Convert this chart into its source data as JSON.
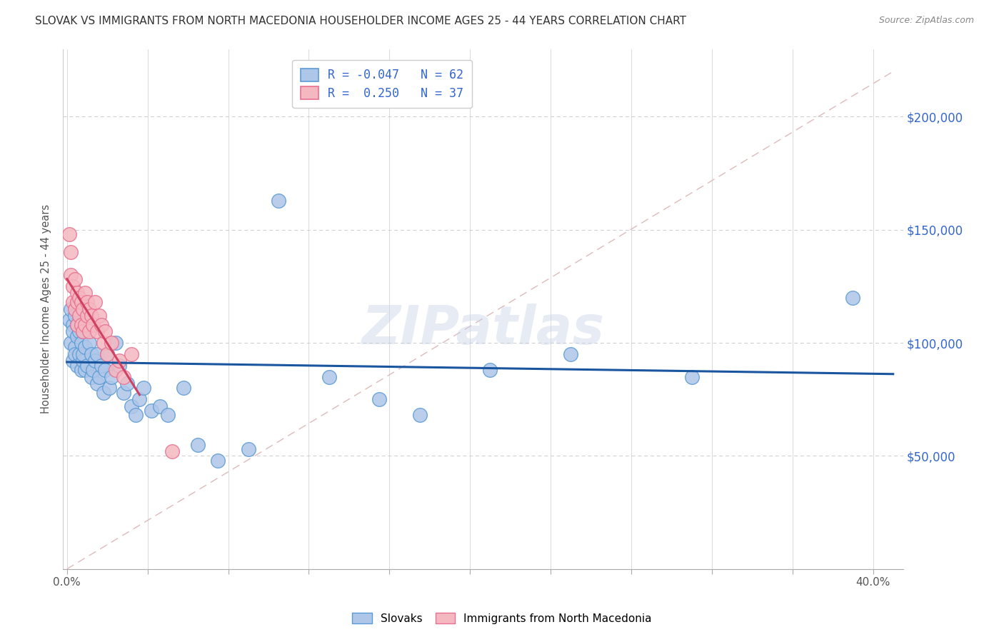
{
  "title": "SLOVAK VS IMMIGRANTS FROM NORTH MACEDONIA HOUSEHOLDER INCOME AGES 25 - 44 YEARS CORRELATION CHART",
  "source": "Source: ZipAtlas.com",
  "ylabel": "Householder Income Ages 25 - 44 years",
  "ytick_labels": [
    "$50,000",
    "$100,000",
    "$150,000",
    "$200,000"
  ],
  "ytick_vals": [
    50000,
    100000,
    150000,
    200000
  ],
  "xlim": [
    -0.002,
    0.415
  ],
  "ylim": [
    0,
    230000
  ],
  "legend_entries": [
    {
      "label": "R = -0.047   N = 62",
      "color": "#aec6e8"
    },
    {
      "label": "R =  0.250   N = 37",
      "color": "#f4b8c1"
    }
  ],
  "watermark": "ZIPatlas",
  "blue_color": "#5b9bd5",
  "pink_color": "#e87090",
  "blue_fill": "#aec6e8",
  "pink_fill": "#f4b8c1",
  "blue_trend_color": "#1a55a0",
  "pink_trend_color": "#d04060",
  "ref_line_color": "#ddbbbb",
  "slovaks_x": [
    0.001,
    0.002,
    0.002,
    0.003,
    0.003,
    0.003,
    0.004,
    0.004,
    0.004,
    0.005,
    0.005,
    0.005,
    0.005,
    0.006,
    0.006,
    0.006,
    0.007,
    0.007,
    0.008,
    0.008,
    0.008,
    0.009,
    0.009,
    0.01,
    0.01,
    0.011,
    0.012,
    0.012,
    0.013,
    0.014,
    0.015,
    0.015,
    0.016,
    0.017,
    0.018,
    0.019,
    0.02,
    0.021,
    0.022,
    0.024,
    0.026,
    0.028,
    0.03,
    0.032,
    0.034,
    0.036,
    0.038,
    0.042,
    0.046,
    0.05,
    0.058,
    0.065,
    0.075,
    0.09,
    0.105,
    0.13,
    0.155,
    0.175,
    0.21,
    0.25,
    0.31,
    0.39
  ],
  "slovaks_y": [
    110000,
    100000,
    115000,
    108000,
    92000,
    105000,
    98000,
    112000,
    95000,
    108000,
    90000,
    103000,
    118000,
    95000,
    105000,
    112000,
    88000,
    100000,
    92000,
    105000,
    95000,
    98000,
    88000,
    108000,
    90000,
    100000,
    95000,
    85000,
    88000,
    92000,
    82000,
    95000,
    85000,
    90000,
    78000,
    88000,
    95000,
    80000,
    85000,
    100000,
    90000,
    78000,
    82000,
    72000,
    68000,
    75000,
    80000,
    70000,
    72000,
    68000,
    80000,
    55000,
    48000,
    53000,
    163000,
    85000,
    75000,
    68000,
    88000,
    95000,
    85000,
    120000
  ],
  "macedonia_x": [
    0.001,
    0.002,
    0.002,
    0.003,
    0.003,
    0.004,
    0.004,
    0.005,
    0.005,
    0.005,
    0.006,
    0.006,
    0.007,
    0.007,
    0.008,
    0.008,
    0.009,
    0.009,
    0.01,
    0.01,
    0.011,
    0.011,
    0.012,
    0.013,
    0.014,
    0.015,
    0.016,
    0.017,
    0.018,
    0.019,
    0.02,
    0.022,
    0.024,
    0.026,
    0.028,
    0.032,
    0.052
  ],
  "macedonia_y": [
    148000,
    140000,
    130000,
    125000,
    118000,
    128000,
    115000,
    122000,
    108000,
    118000,
    112000,
    120000,
    108000,
    118000,
    115000,
    105000,
    122000,
    108000,
    112000,
    118000,
    105000,
    115000,
    112000,
    108000,
    118000,
    105000,
    112000,
    108000,
    100000,
    105000,
    95000,
    100000,
    88000,
    92000,
    85000,
    95000,
    52000
  ]
}
